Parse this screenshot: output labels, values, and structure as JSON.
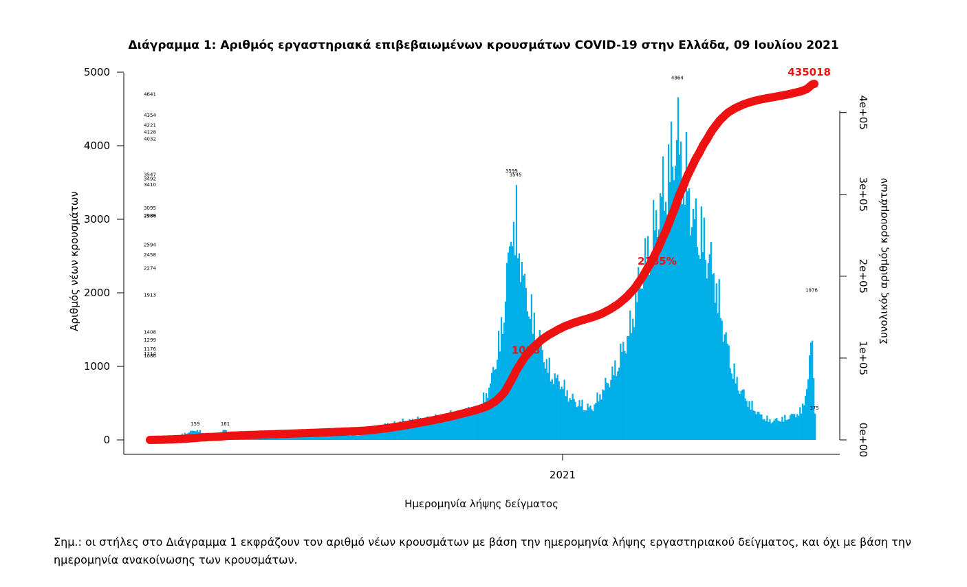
{
  "title": "Διάγραμμα 1: Αριθμός εργαστηριακά επιβεβαιωμένων κρουσμάτων COVID-19 στην Ελλάδα, 09 Ιουλίου 2021",
  "note": "Σημ.: οι στήλες στο Διάγραμμα 1 εκφράζουν τον αριθμό νέων κρουσμάτων με βάση την ημερομηνία λήψης εργαστηριακού δείγματος, και όχι με βάση την ημερομηνία ανακοίνωσης των κρουσμάτων.",
  "chart_data": {
    "type": "bar",
    "xlabel": "Ημερομηνία λήψης δείγματος",
    "ylabel": "Αριθμός νέων κρουσμάτων",
    "y2label": "Συνολικός αριθμός κρουσμάτων",
    "x_tick_labels": [
      "2021"
    ],
    "y_ticks": [
      0,
      1000,
      2000,
      3000,
      4000,
      5000
    ],
    "y_tick_labels": [
      "0",
      "1000",
      "2000",
      "3000",
      "4000",
      "5000"
    ],
    "y2_ticks": [
      0,
      100000,
      200000,
      300000,
      400000
    ],
    "y2_tick_labels": [
      "0e+00",
      "1e+05",
      "2e+05",
      "3e+05",
      "4e+05"
    ],
    "ylim": [
      0,
      5000
    ],
    "y2lim": [
      0,
      435018
    ],
    "bar_color": "#00aee8",
    "line_color": "#ee1111",
    "peak_values": [
      {
        "label": "159",
        "value": 159
      },
      {
        "label": "161",
        "value": 161
      },
      {
        "label": "3599",
        "value": 3599
      },
      {
        "label": "3545",
        "value": 3545
      },
      {
        "label": "3095",
        "value": 3095
      },
      {
        "label": "2458",
        "value": 2458
      },
      {
        "label": "1176",
        "value": 1176
      },
      {
        "label": "1114",
        "value": 1114
      },
      {
        "label": "1086",
        "value": 1086
      },
      {
        "label": "1408",
        "value": 1408
      },
      {
        "label": "2274",
        "value": 2274
      },
      {
        "label": "2989",
        "value": 2989
      },
      {
        "label": "3410",
        "value": 3410
      },
      {
        "label": "4032",
        "value": 4032
      },
      {
        "label": "4128",
        "value": 4128
      },
      {
        "label": "4641",
        "value": 4641
      },
      {
        "label": "4864",
        "value": 4864
      },
      {
        "label": "4354",
        "value": 4354
      },
      {
        "label": "4221",
        "value": 4221
      },
      {
        "label": "3547",
        "value": 3547
      },
      {
        "label": "3492",
        "value": 3492
      },
      {
        "label": "2986",
        "value": 2986
      },
      {
        "label": "2594",
        "value": 2594
      },
      {
        "label": "1913",
        "value": 1913
      },
      {
        "label": "1299",
        "value": 1299
      },
      {
        "label": "1976",
        "value": 1976
      },
      {
        "label": "375",
        "value": 375
      }
    ],
    "milestones": [
      {
        "label": "1098",
        "cumulative": 109800
      },
      {
        "label": "2185%",
        "cumulative": 218500
      },
      {
        "label": "435018",
        "cumulative": 435018
      }
    ],
    "cumulative_total": 435018
  }
}
